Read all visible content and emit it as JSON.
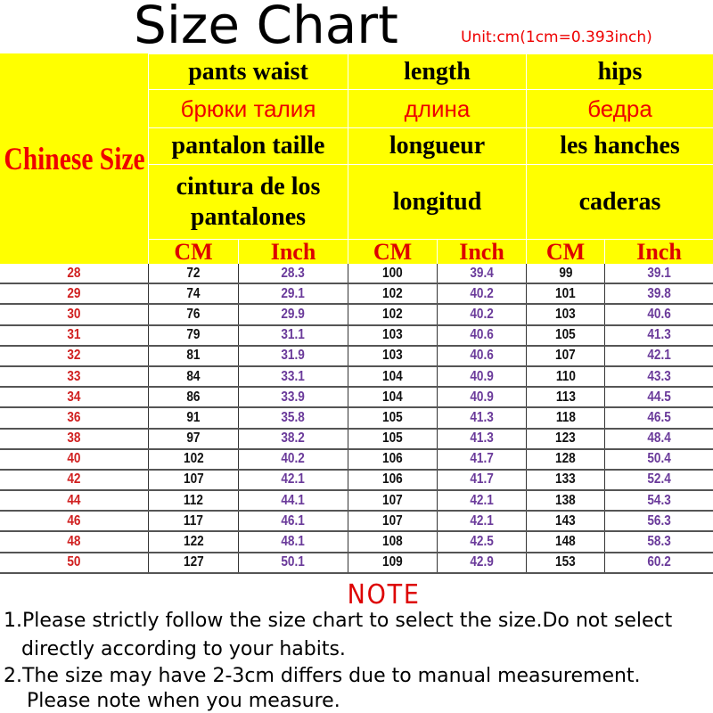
{
  "title": "Size Chart",
  "unit_note": "Unit:cm(1cm=0.393inch)",
  "header": {
    "size_label": "Chinese Size",
    "english": [
      "pants waist",
      "length",
      "hips"
    ],
    "russian": [
      "брюки талия",
      "длина",
      "бедра"
    ],
    "french": [
      "pantalon taille",
      "longueur",
      "les hanches"
    ],
    "spanish": [
      "cintura de los pantalones",
      "longitud",
      "caderas"
    ],
    "cm": "CM",
    "inch": "Inch"
  },
  "colors": {
    "header_bg": "#ffff00",
    "size_red": "#d02020",
    "inch_purple": "#6a3a9a",
    "accent_red": "#e00000"
  },
  "chart_data": {
    "type": "table",
    "columns": [
      "Chinese Size",
      "pants waist CM",
      "pants waist Inch",
      "length CM",
      "length Inch",
      "hips CM",
      "hips Inch"
    ],
    "rows": [
      [
        "28",
        "72",
        "28.3",
        "100",
        "39.4",
        "99",
        "39.1"
      ],
      [
        "29",
        "74",
        "29.1",
        "102",
        "40.2",
        "101",
        "39.8"
      ],
      [
        "30",
        "76",
        "29.9",
        "102",
        "40.2",
        "103",
        "40.6"
      ],
      [
        "31",
        "79",
        "31.1",
        "103",
        "40.6",
        "105",
        "41.3"
      ],
      [
        "32",
        "81",
        "31.9",
        "103",
        "40.6",
        "107",
        "42.1"
      ],
      [
        "33",
        "84",
        "33.1",
        "104",
        "40.9",
        "110",
        "43.3"
      ],
      [
        "34",
        "86",
        "33.9",
        "104",
        "40.9",
        "113",
        "44.5"
      ],
      [
        "36",
        "91",
        "35.8",
        "105",
        "41.3",
        "118",
        "46.5"
      ],
      [
        "38",
        "97",
        "38.2",
        "105",
        "41.3",
        "123",
        "48.4"
      ],
      [
        "40",
        "102",
        "40.2",
        "106",
        "41.7",
        "128",
        "50.4"
      ],
      [
        "42",
        "107",
        "42.1",
        "106",
        "41.7",
        "133",
        "52.4"
      ],
      [
        "44",
        "112",
        "44.1",
        "107",
        "42.1",
        "138",
        "54.3"
      ],
      [
        "46",
        "117",
        "46.1",
        "107",
        "42.1",
        "143",
        "56.3"
      ],
      [
        "48",
        "122",
        "48.1",
        "108",
        "42.5",
        "148",
        "58.3"
      ],
      [
        "50",
        "127",
        "50.1",
        "109",
        "42.9",
        "153",
        "60.2"
      ]
    ]
  },
  "note": {
    "heading": "NOTE",
    "lines": [
      "1.Please strictly follow the size chart to select the size.Do not select",
      "directly according to your habits.",
      "2.The size may have 2-3cm differs due to manual measurement.",
      "Please note when you measure."
    ]
  }
}
